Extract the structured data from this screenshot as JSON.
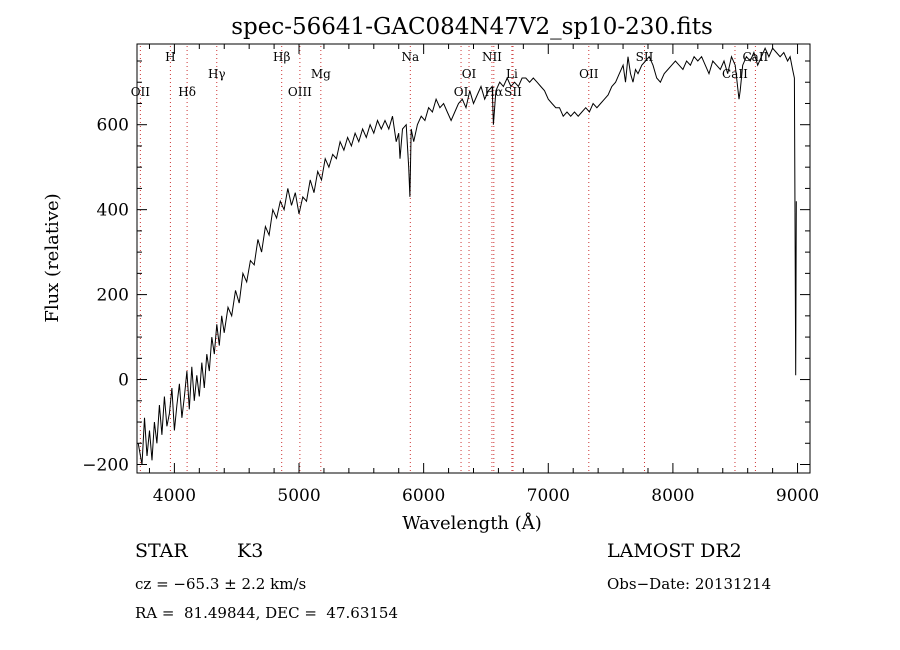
{
  "chart_data": {
    "type": "line",
    "title": "spec-56641-GAC084N47V2_sp10-230.fits",
    "xlabel": "Wavelength (Å)",
    "ylabel": "Flux (relative)",
    "xlim": [
      3700,
      9100
    ],
    "ylim": [
      -220,
      790
    ],
    "x_ticks": [
      4000,
      5000,
      6000,
      7000,
      8000,
      9000
    ],
    "y_ticks": [
      -200,
      0,
      200,
      400,
      600
    ],
    "grid": false,
    "line_color": "#000000",
    "marker_color": "#cc3333",
    "series": [
      {
        "x": [
          3710,
          3740,
          3760,
          3780,
          3800,
          3820,
          3840,
          3860,
          3880,
          3900,
          3920,
          3940,
          3960,
          3980,
          4000,
          4020,
          4040,
          4060,
          4080,
          4100,
          4120,
          4140,
          4160,
          4180,
          4200,
          4220,
          4240,
          4260,
          4280,
          4300,
          4320,
          4340,
          4360,
          4380,
          4400,
          4430,
          4460,
          4490,
          4520,
          4550,
          4580,
          4610,
          4640,
          4670,
          4700,
          4730,
          4760,
          4790,
          4820,
          4850,
          4880,
          4910,
          4940,
          4970,
          5000,
          5030,
          5060,
          5090,
          5120,
          5150,
          5180,
          5210,
          5240,
          5270,
          5300,
          5330,
          5360,
          5390,
          5420,
          5450,
          5480,
          5510,
          5540,
          5570,
          5600,
          5630,
          5660,
          5690,
          5720,
          5750,
          5780,
          5800,
          5810,
          5830,
          5860,
          5880,
          5890,
          5900,
          5920,
          5950,
          5980,
          6010,
          6040,
          6070,
          6100,
          6130,
          6160,
          6190,
          6220,
          6250,
          6280,
          6310,
          6340,
          6370,
          6400,
          6430,
          6460,
          6490,
          6520,
          6550,
          6560,
          6580,
          6610,
          6640,
          6670,
          6700,
          6730,
          6760,
          6790,
          6820,
          6850,
          6880,
          6910,
          6940,
          6970,
          7000,
          7030,
          7060,
          7090,
          7120,
          7150,
          7180,
          7210,
          7240,
          7270,
          7300,
          7330,
          7360,
          7390,
          7420,
          7450,
          7480,
          7510,
          7540,
          7570,
          7600,
          7620,
          7640,
          7660,
          7680,
          7700,
          7720,
          7750,
          7780,
          7810,
          7840,
          7870,
          7900,
          7930,
          7960,
          7990,
          8020,
          8050,
          8080,
          8110,
          8140,
          8170,
          8200,
          8230,
          8260,
          8290,
          8320,
          8350,
          8380,
          8410,
          8440,
          8470,
          8500,
          8530,
          8540,
          8560,
          8590,
          8620,
          8650,
          8680,
          8710,
          8740,
          8770,
          8800,
          8830,
          8860,
          8890,
          8920,
          8940,
          8960,
          8975,
          8985,
          8990
        ],
        "y": [
          -150,
          -200,
          -90,
          -180,
          -120,
          -190,
          -100,
          -150,
          -60,
          -130,
          -40,
          -110,
          -80,
          -20,
          -120,
          -60,
          -10,
          -90,
          -40,
          20,
          -70,
          30,
          -50,
          10,
          -40,
          40,
          -20,
          60,
          20,
          100,
          60,
          130,
          80,
          150,
          110,
          170,
          150,
          210,
          180,
          250,
          230,
          280,
          270,
          330,
          300,
          360,
          340,
          400,
          380,
          420,
          400,
          450,
          410,
          440,
          390,
          430,
          420,
          470,
          440,
          490,
          470,
          520,
          500,
          530,
          520,
          560,
          540,
          570,
          550,
          580,
          560,
          590,
          570,
          600,
          580,
          610,
          590,
          610,
          590,
          620,
          560,
          580,
          520,
          590,
          600,
          500,
          430,
          590,
          560,
          600,
          620,
          610,
          640,
          630,
          660,
          640,
          650,
          630,
          610,
          630,
          650,
          660,
          640,
          680,
          650,
          670,
          690,
          660,
          680,
          690,
          600,
          680,
          700,
          690,
          710,
          690,
          700,
          690,
          710,
          710,
          700,
          710,
          700,
          690,
          680,
          660,
          650,
          640,
          640,
          620,
          630,
          620,
          630,
          620,
          630,
          640,
          630,
          650,
          640,
          650,
          660,
          670,
          690,
          700,
          720,
          740,
          700,
          760,
          720,
          700,
          730,
          720,
          740,
          750,
          760,
          740,
          710,
          700,
          720,
          730,
          740,
          750,
          740,
          730,
          750,
          740,
          760,
          750,
          760,
          740,
          720,
          750,
          740,
          730,
          750,
          720,
          760,
          740,
          660,
          680,
          740,
          760,
          750,
          770,
          740,
          760,
          780,
          760,
          780,
          770,
          760,
          770,
          750,
          760,
          730,
          710,
          10,
          420
        ]
      }
    ],
    "lines": [
      {
        "name": "OII",
        "x": 3727,
        "row": 2
      },
      {
        "name": "H",
        "x": 3968,
        "row": 0
      },
      {
        "name": "Hδ",
        "x": 4102,
        "row": 2
      },
      {
        "name": "Hγ",
        "x": 4340,
        "row": 1
      },
      {
        "name": "Hβ",
        "x": 4861,
        "row": 0
      },
      {
        "name": "OIII",
        "x": 5007,
        "row": 2
      },
      {
        "name": "Mg",
        "x": 5175,
        "row": 1
      },
      {
        "name": "Na",
        "x": 5893,
        "row": 0
      },
      {
        "name": "OI",
        "x": 6300,
        "row": 2
      },
      {
        "name": "OI",
        "x": 6364,
        "row": 1
      },
      {
        "name": "NII",
        "x": 6548,
        "row": 0
      },
      {
        "name": "Hα",
        "x": 6563,
        "row": 2
      },
      {
        "name": "SII",
        "x": 6717,
        "row": 2
      },
      {
        "name": "Li",
        "x": 6708,
        "row": 1
      },
      {
        "name": "OII",
        "x": 7325,
        "row": 1
      },
      {
        "name": "SII",
        "x": 7772,
        "row": 0
      },
      {
        "name": "CaII",
        "x": 8498,
        "row": 1
      },
      {
        "name": "CaII",
        "x": 8662,
        "row": 0
      }
    ]
  },
  "footer": {
    "object_class": "STAR",
    "subclass": "K3",
    "cz": "cz = −65.3 ± 2.2 km/s",
    "coords": "RA =  81.49844, DEC =  47.63154",
    "survey": "LAMOST DR2",
    "obs_date": "Obs−Date: 20131214"
  }
}
